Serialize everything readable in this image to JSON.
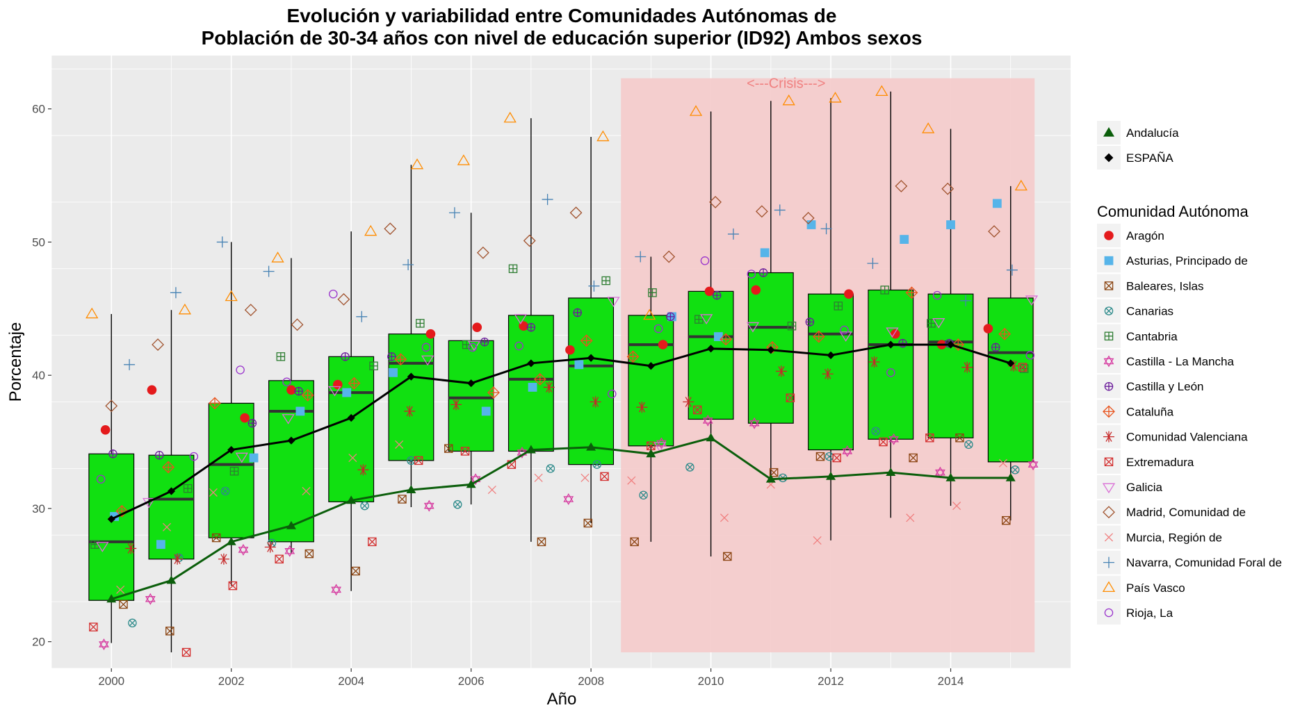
{
  "chart_data": {
    "type": "boxplot",
    "title_line1": "Evolución y variabilidad entre Comunidades Autónomas de",
    "title_line2": "Población de 30-34 años con nivel de educación superior (ID92) Ambos sexos",
    "xlabel": "Año",
    "ylabel": "Porcentaje",
    "xlim": [
      1999,
      2016
    ],
    "ylim": [
      18,
      64
    ],
    "x_ticks": [
      2000,
      2002,
      2004,
      2006,
      2008,
      2010,
      2012,
      2014
    ],
    "y_ticks": [
      20,
      30,
      40,
      50,
      60
    ],
    "grid": true,
    "background": "#ebebeb",
    "annotation": {
      "text": "<---Crisis--->",
      "x_start": 2008.5,
      "x_end": 2015.4,
      "y_min": 19.2,
      "y_max": 62.3,
      "color": "#f4cccc"
    },
    "years": [
      2000,
      2001,
      2002,
      2003,
      2004,
      2005,
      2006,
      2007,
      2008,
      2009,
      2010,
      2011,
      2012,
      2013,
      2014,
      2015
    ],
    "boxes": [
      {
        "year": 2000,
        "whisker_low": 19.9,
        "q1": 23.1,
        "median": 27.5,
        "q3": 34.1,
        "whisker_high": 44.6
      },
      {
        "year": 2001,
        "whisker_low": 19.2,
        "q1": 26.2,
        "median": 30.7,
        "q3": 34.0,
        "whisker_high": 44.9
      },
      {
        "year": 2002,
        "whisker_low": 24.2,
        "q1": 27.8,
        "median": 33.3,
        "q3": 37.9,
        "whisker_high": 50.0
      },
      {
        "year": 2003,
        "whisker_low": 26.6,
        "q1": 27.5,
        "median": 37.3,
        "q3": 39.6,
        "whisker_high": 48.8
      },
      {
        "year": 2004,
        "whisker_low": 23.8,
        "q1": 30.5,
        "median": 38.7,
        "q3": 41.4,
        "whisker_high": 50.8
      },
      {
        "year": 2005,
        "whisker_low": 30.1,
        "q1": 33.6,
        "median": 40.9,
        "q3": 43.1,
        "whisker_high": 55.8
      },
      {
        "year": 2006,
        "whisker_low": 30.3,
        "q1": 34.3,
        "median": 38.3,
        "q3": 42.6,
        "whisker_high": 52.2
      },
      {
        "year": 2007,
        "whisker_low": 27.5,
        "q1": 34.3,
        "median": 39.7,
        "q3": 44.5,
        "whisker_high": 59.3
      },
      {
        "year": 2008,
        "whisker_low": 28.9,
        "q1": 33.3,
        "median": 40.7,
        "q3": 45.8,
        "whisker_high": 57.9
      },
      {
        "year": 2009,
        "whisker_low": 27.5,
        "q1": 34.7,
        "median": 42.3,
        "q3": 44.5,
        "whisker_high": 48.9
      },
      {
        "year": 2010,
        "whisker_low": 26.4,
        "q1": 36.7,
        "median": 42.9,
        "q3": 46.3,
        "whisker_high": 59.8
      },
      {
        "year": 2011,
        "whisker_low": 32.2,
        "q1": 36.4,
        "median": 43.6,
        "q3": 47.7,
        "whisker_high": 60.6
      },
      {
        "year": 2012,
        "whisker_low": 27.6,
        "q1": 34.4,
        "median": 43.1,
        "q3": 46.1,
        "whisker_high": 60.8
      },
      {
        "year": 2013,
        "whisker_low": 29.3,
        "q1": 35.2,
        "median": 42.3,
        "q3": 46.4,
        "whisker_high": 61.3
      },
      {
        "year": 2014,
        "whisker_low": 30.2,
        "q1": 35.3,
        "median": 42.5,
        "q3": 46.1,
        "whisker_high": 58.5
      },
      {
        "year": 2015,
        "whisker_low": 29.1,
        "q1": 33.5,
        "median": 41.7,
        "q3": 45.8,
        "whisker_high": 54.2
      }
    ],
    "lines": [
      {
        "name": "ESPAÑA",
        "color": "#000000",
        "shape": "diamond",
        "values": [
          29.2,
          31.3,
          34.4,
          35.1,
          36.8,
          39.9,
          39.4,
          40.9,
          41.3,
          40.7,
          42.0,
          41.9,
          41.5,
          42.3,
          42.3,
          40.9
        ]
      },
      {
        "name": "Andalucía",
        "color": "#0b5e0b",
        "shape": "triangle",
        "values": [
          23.2,
          24.6,
          27.5,
          28.7,
          30.6,
          31.4,
          31.8,
          34.4,
          34.6,
          34.1,
          35.3,
          32.2,
          32.4,
          32.7,
          32.3,
          32.3
        ]
      }
    ],
    "legend_lines_order": [
      "Andalucía",
      "ESPAÑA"
    ],
    "legend_title": "Comunidad Autónoma",
    "series": [
      {
        "name": "Aragón",
        "shape": "circle",
        "color": "#e41a1c",
        "values": [
          35.9,
          38.9,
          36.8,
          38.9,
          39.3,
          43.1,
          43.6,
          43.7,
          41.9,
          42.3,
          46.3,
          46.4,
          46.1,
          43.1,
          42.3,
          43.5
        ]
      },
      {
        "name": "Asturias, Principado de",
        "shape": "square",
        "color": "#56b4e9",
        "values": [
          29.4,
          27.3,
          33.8,
          37.3,
          38.7,
          40.2,
          37.3,
          39.1,
          40.8,
          44.4,
          42.9,
          49.2,
          51.3,
          50.2,
          51.3,
          52.9
        ]
      },
      {
        "name": "Baleares, Islas",
        "shape": "square-x",
        "color": "#8b4513",
        "values": [
          22.8,
          20.8,
          27.8,
          26.6,
          25.3,
          30.7,
          34.5,
          27.5,
          28.9,
          27.5,
          26.4,
          32.7,
          33.9,
          33.8,
          35.3,
          29.1
        ]
      },
      {
        "name": "Canarias",
        "shape": "circle-x",
        "color": "#2e8b8b",
        "values": [
          21.4,
          26.3,
          31.3,
          27.4,
          30.2,
          33.6,
          30.3,
          33.0,
          33.3,
          31.0,
          33.1,
          32.3,
          33.9,
          35.8,
          34.8,
          32.9
        ]
      },
      {
        "name": "Cantabria",
        "shape": "square-plus",
        "color": "#2e7d32",
        "values": [
          27.3,
          31.5,
          32.8,
          41.4,
          40.7,
          43.9,
          42.3,
          48.0,
          47.1,
          46.2,
          44.2,
          43.7,
          45.2,
          46.4,
          43.9,
          40.5
        ]
      },
      {
        "name": "Castilla - La Mancha",
        "shape": "star6",
        "color": "#d63ba0",
        "values": [
          19.8,
          23.2,
          26.9,
          26.8,
          23.9,
          30.2,
          32.2,
          34.2,
          30.7,
          34.9,
          36.6,
          36.4,
          34.3,
          35.2,
          32.7,
          33.3
        ]
      },
      {
        "name": "Castilla y León",
        "shape": "circle-plus",
        "color": "#6a1b9a",
        "values": [
          34.1,
          34.0,
          36.4,
          38.8,
          41.4,
          41.4,
          42.5,
          43.6,
          44.7,
          44.4,
          46.0,
          47.7,
          44.0,
          42.4,
          42.4,
          42.1
        ]
      },
      {
        "name": "Cataluña",
        "shape": "diamond-plus",
        "color": "#e8541e",
        "values": [
          29.8,
          33.1,
          37.9,
          38.5,
          39.4,
          41.2,
          38.7,
          39.7,
          42.6,
          41.4,
          42.7,
          42.1,
          42.9,
          46.2,
          42.3,
          43.1
        ]
      },
      {
        "name": "Comunidad Valenciana",
        "shape": "asterisk",
        "color": "#c62828",
        "values": [
          27.0,
          26.2,
          26.2,
          27.1,
          32.9,
          37.3,
          37.8,
          39.1,
          38.0,
          37.6,
          38.0,
          40.3,
          40.1,
          41.0,
          40.6,
          40.7
        ]
      },
      {
        "name": "Extremadura",
        "shape": "square-x",
        "color": "#d32f2f",
        "values": [
          21.1,
          19.2,
          24.2,
          26.2,
          27.5,
          33.6,
          34.3,
          33.3,
          32.4,
          34.7,
          37.4,
          38.3,
          33.8,
          35.0,
          35.3,
          40.6
        ]
      },
      {
        "name": "Galicia",
        "shape": "triangle-down",
        "color": "#da70d6",
        "values": [
          27.2,
          30.5,
          33.9,
          36.8,
          38.9,
          41.2,
          42.3,
          44.3,
          45.6,
          34.7,
          44.3,
          43.7,
          43.0,
          43.3,
          44.0,
          45.7
        ]
      },
      {
        "name": "Madrid, Comunidad de",
        "shape": "diamond-open",
        "color": "#a0522d",
        "values": [
          37.7,
          42.3,
          44.9,
          43.8,
          45.7,
          51.0,
          49.2,
          50.1,
          52.2,
          48.9,
          53.0,
          52.3,
          51.8,
          54.2,
          54.0,
          50.8
        ]
      },
      {
        "name": "Murcia, Región de",
        "shape": "x",
        "color": "#f08080",
        "values": [
          23.9,
          28.6,
          31.2,
          31.3,
          33.8,
          34.8,
          31.4,
          32.3,
          32.3,
          32.1,
          29.3,
          31.8,
          27.6,
          29.3,
          30.2,
          33.4
        ]
      },
      {
        "name": "Navarra, Comunidad Foral de",
        "shape": "plus",
        "color": "#4682b4",
        "values": [
          40.8,
          46.2,
          50.0,
          47.8,
          44.4,
          48.3,
          52.2,
          53.2,
          46.7,
          48.9,
          50.6,
          52.4,
          51.0,
          48.4,
          45.6,
          47.9
        ]
      },
      {
        "name": "País Vasco",
        "shape": "triangle-open",
        "color": "#ff8c00",
        "values": [
          44.6,
          44.9,
          45.9,
          48.8,
          50.8,
          55.8,
          56.1,
          59.3,
          57.9,
          44.5,
          59.8,
          60.6,
          60.8,
          61.3,
          58.5,
          54.2
        ]
      },
      {
        "name": "Rioja, La",
        "shape": "circle-open",
        "color": "#9932cc",
        "values": [
          32.2,
          33.9,
          40.4,
          39.5,
          46.1,
          42.1,
          42.1,
          42.2,
          38.6,
          43.5,
          48.6,
          47.6,
          43.4,
          40.2,
          46.0,
          41.5
        ]
      }
    ]
  }
}
